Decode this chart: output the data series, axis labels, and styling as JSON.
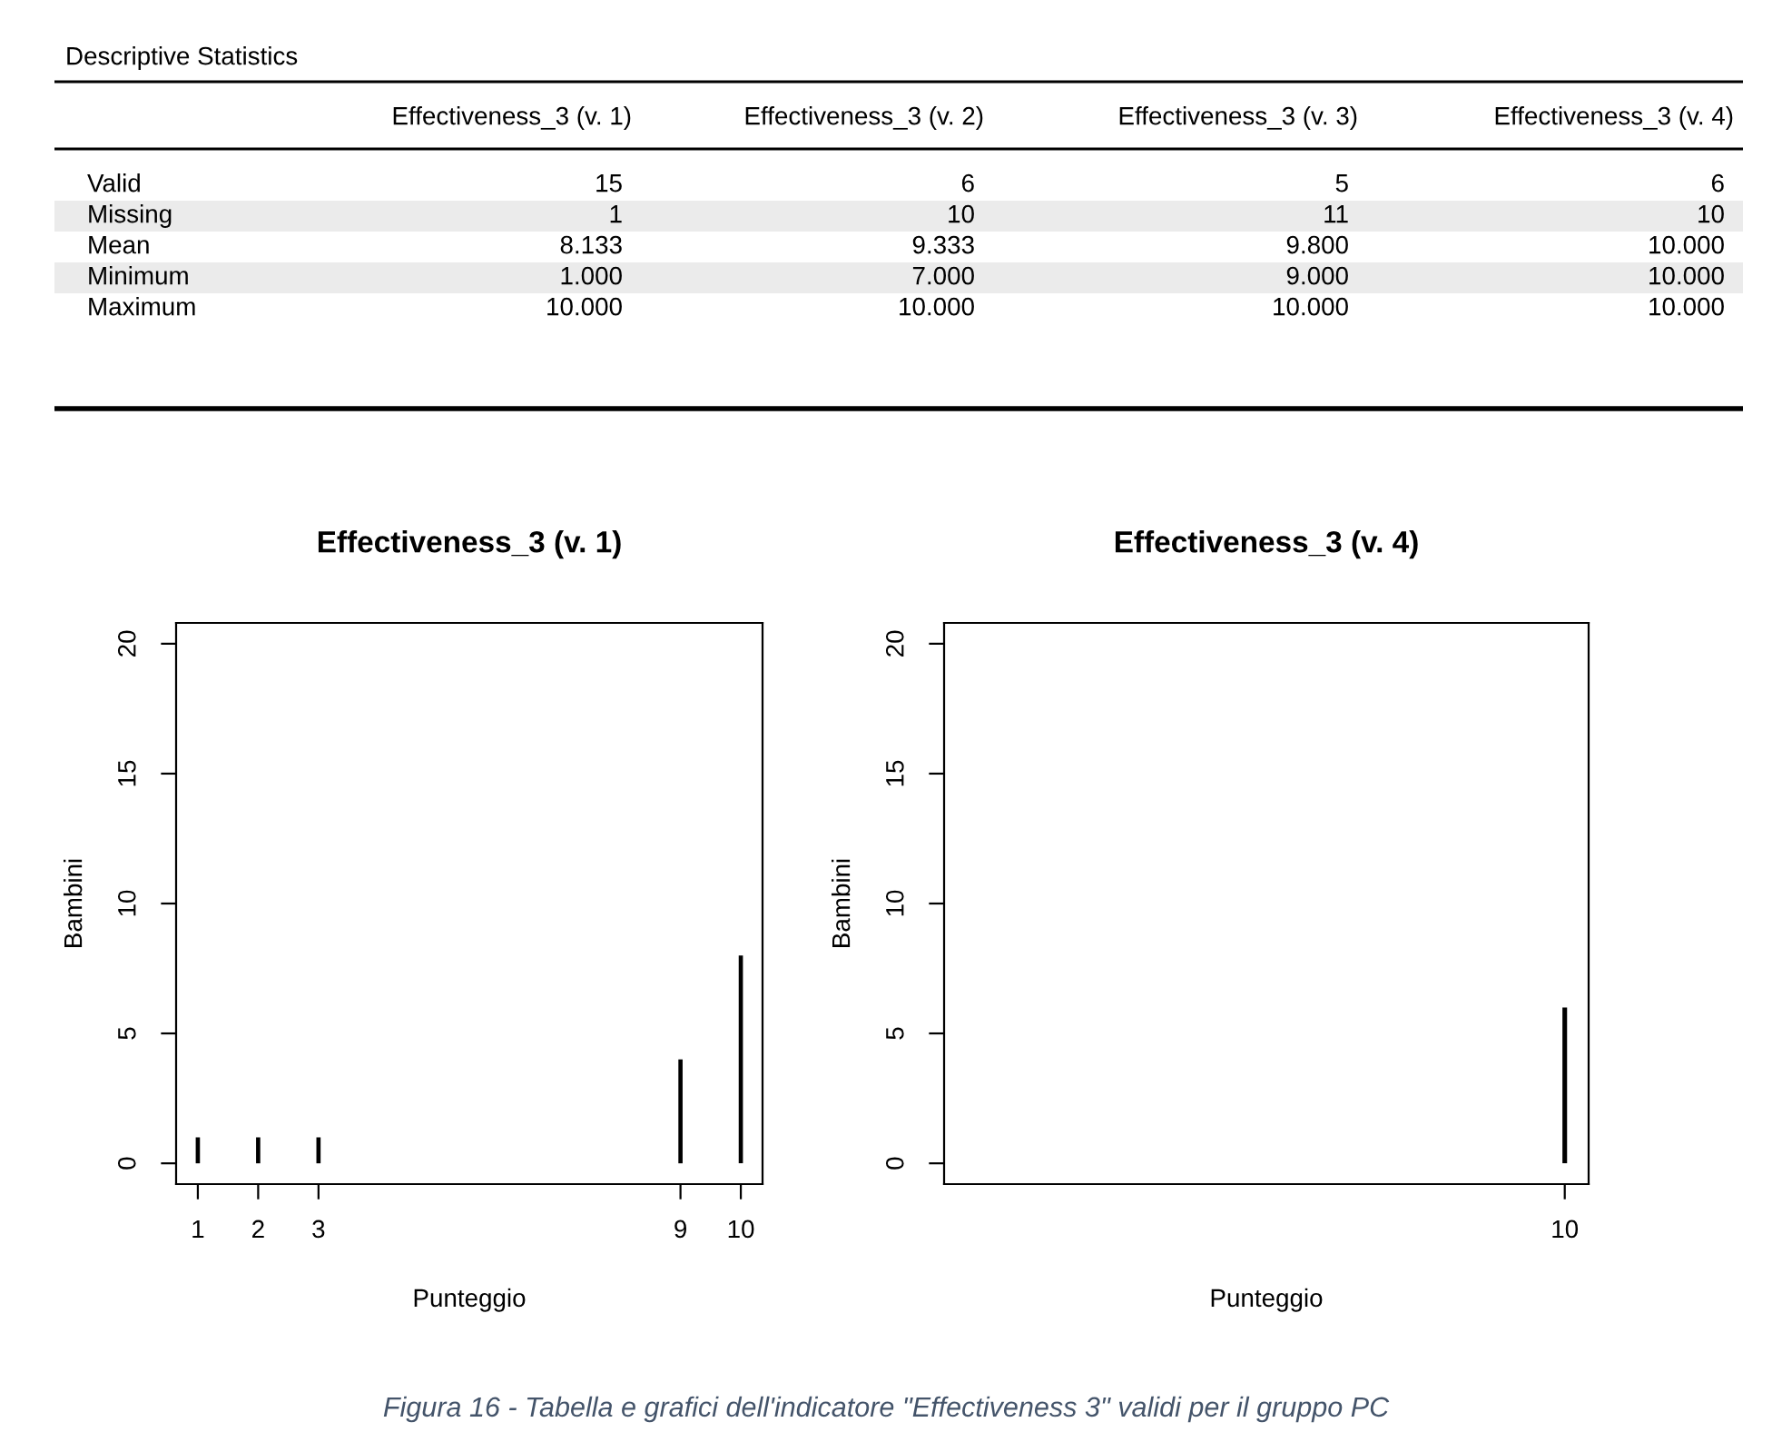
{
  "chart_data": [
    {
      "type": "other",
      "title": "Descriptive Statistics",
      "categories": [
        "Effectiveness_3 (v. 1)",
        "Effectiveness_3 (v. 2)",
        "Effectiveness_3 (v. 3)",
        "Effectiveness_3 (v. 4)"
      ],
      "y_categories": [
        "Valid",
        "Missing",
        "Mean",
        "Minimum",
        "Maximum"
      ],
      "cell_labels": [
        [
          "15",
          "6",
          "5",
          "6"
        ],
        [
          "1",
          "10",
          "11",
          "10"
        ],
        [
          "8.133",
          "9.333",
          "9.800",
          "10.000"
        ],
        [
          "1.000",
          "7.000",
          "9.000",
          "10.000"
        ],
        [
          "10.000",
          "10.000",
          "10.000",
          "10.000"
        ]
      ]
    },
    {
      "type": "bar",
      "title": "Effectiveness_3 (v. 1)",
      "xlabel": "Punteggio",
      "ylabel": "Bambini",
      "x": [
        1,
        2,
        3,
        9,
        10
      ],
      "values": [
        1,
        1,
        1,
        4,
        8
      ],
      "color": "#000000",
      "xlim": [
        0.64,
        10.36
      ],
      "xticks": [
        1,
        2,
        3,
        9,
        10
      ],
      "ylim": [
        -0.8,
        20.8
      ],
      "yticks": [
        0,
        5,
        10,
        15,
        20
      ],
      "grid": false
    },
    {
      "type": "bar",
      "title": "Effectiveness_3 (v. 4)",
      "xlabel": "Punteggio",
      "ylabel": "Bambini",
      "categories": [
        null,
        null,
        null,
        null,
        null,
        null,
        null,
        null,
        null,
        "10"
      ],
      "values": [
        null,
        null,
        null,
        null,
        null,
        null,
        null,
        null,
        null,
        6
      ],
      "color": "#000000",
      "ylim": [
        -0.8,
        20.8
      ],
      "yticks": [
        0,
        5,
        10,
        15,
        20
      ],
      "grid": false,
      "annotations": [
        "Figura 16 - Tabella e grafici dell'indicatore \"Effectiveness 3\" validi per il gruppo PC"
      ]
    }
  ]
}
